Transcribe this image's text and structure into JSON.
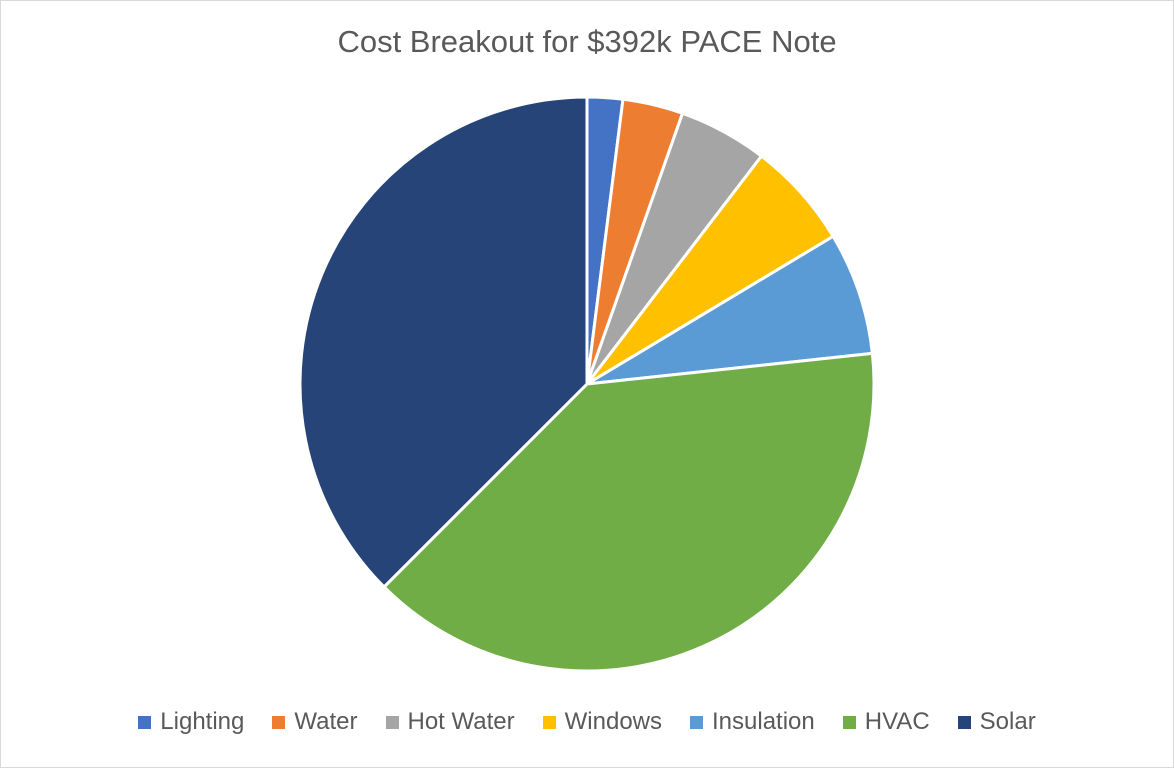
{
  "chart_data": {
    "type": "pie",
    "title": "Cost Breakout for $392k PACE Note",
    "categories": [
      "Lighting",
      "Water",
      "Hot Water",
      "Windows",
      "Insulation",
      "HVAC",
      "Solar"
    ],
    "values": [
      2.0,
      3.4,
      5.0,
      6.0,
      6.9,
      39.2,
      37.5
    ],
    "colors": [
      "#4472C4",
      "#ED7D31",
      "#A5A5A5",
      "#FFC000",
      "#5B9BD5",
      "#70AD47",
      "#264478"
    ],
    "legend": "bottom"
  }
}
